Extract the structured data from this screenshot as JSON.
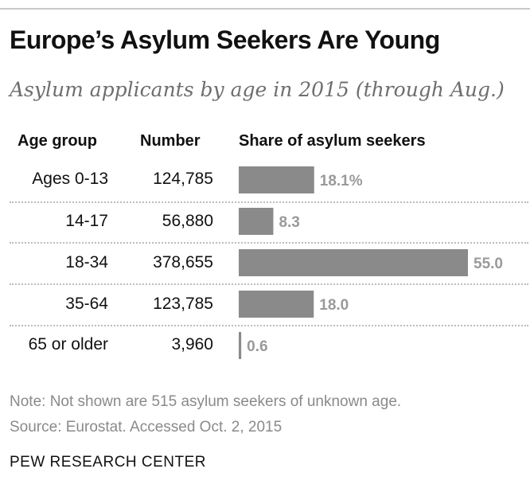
{
  "title": "Europe’s Asylum Seekers Are Young",
  "subtitle": "Asylum applicants by age in 2015 (through Aug.)",
  "headers": {
    "age": "Age group",
    "number": "Number",
    "share": "Share of asylum seekers"
  },
  "chart_data": {
    "type": "bar",
    "orientation": "horizontal",
    "categories": [
      "Ages 0-13",
      "14-17",
      "18-34",
      "35-64",
      "65 or older"
    ],
    "numbers": [
      "124,785",
      "56,880",
      "378,655",
      "123,785",
      "3,960"
    ],
    "values": [
      18.1,
      8.3,
      55.0,
      18.0,
      0.6
    ],
    "value_labels": [
      "18.1%",
      "8.3",
      "55.0",
      "18.0",
      "0.6"
    ],
    "xlim": [
      0,
      55
    ],
    "bar_color": "#8a8a8a"
  },
  "note": "Note: Not shown are 515 asylum seekers of unknown age.",
  "source": "Source: Eurostat. Accessed Oct. 2, 2015",
  "brand": "PEW RESEARCH CENTER"
}
